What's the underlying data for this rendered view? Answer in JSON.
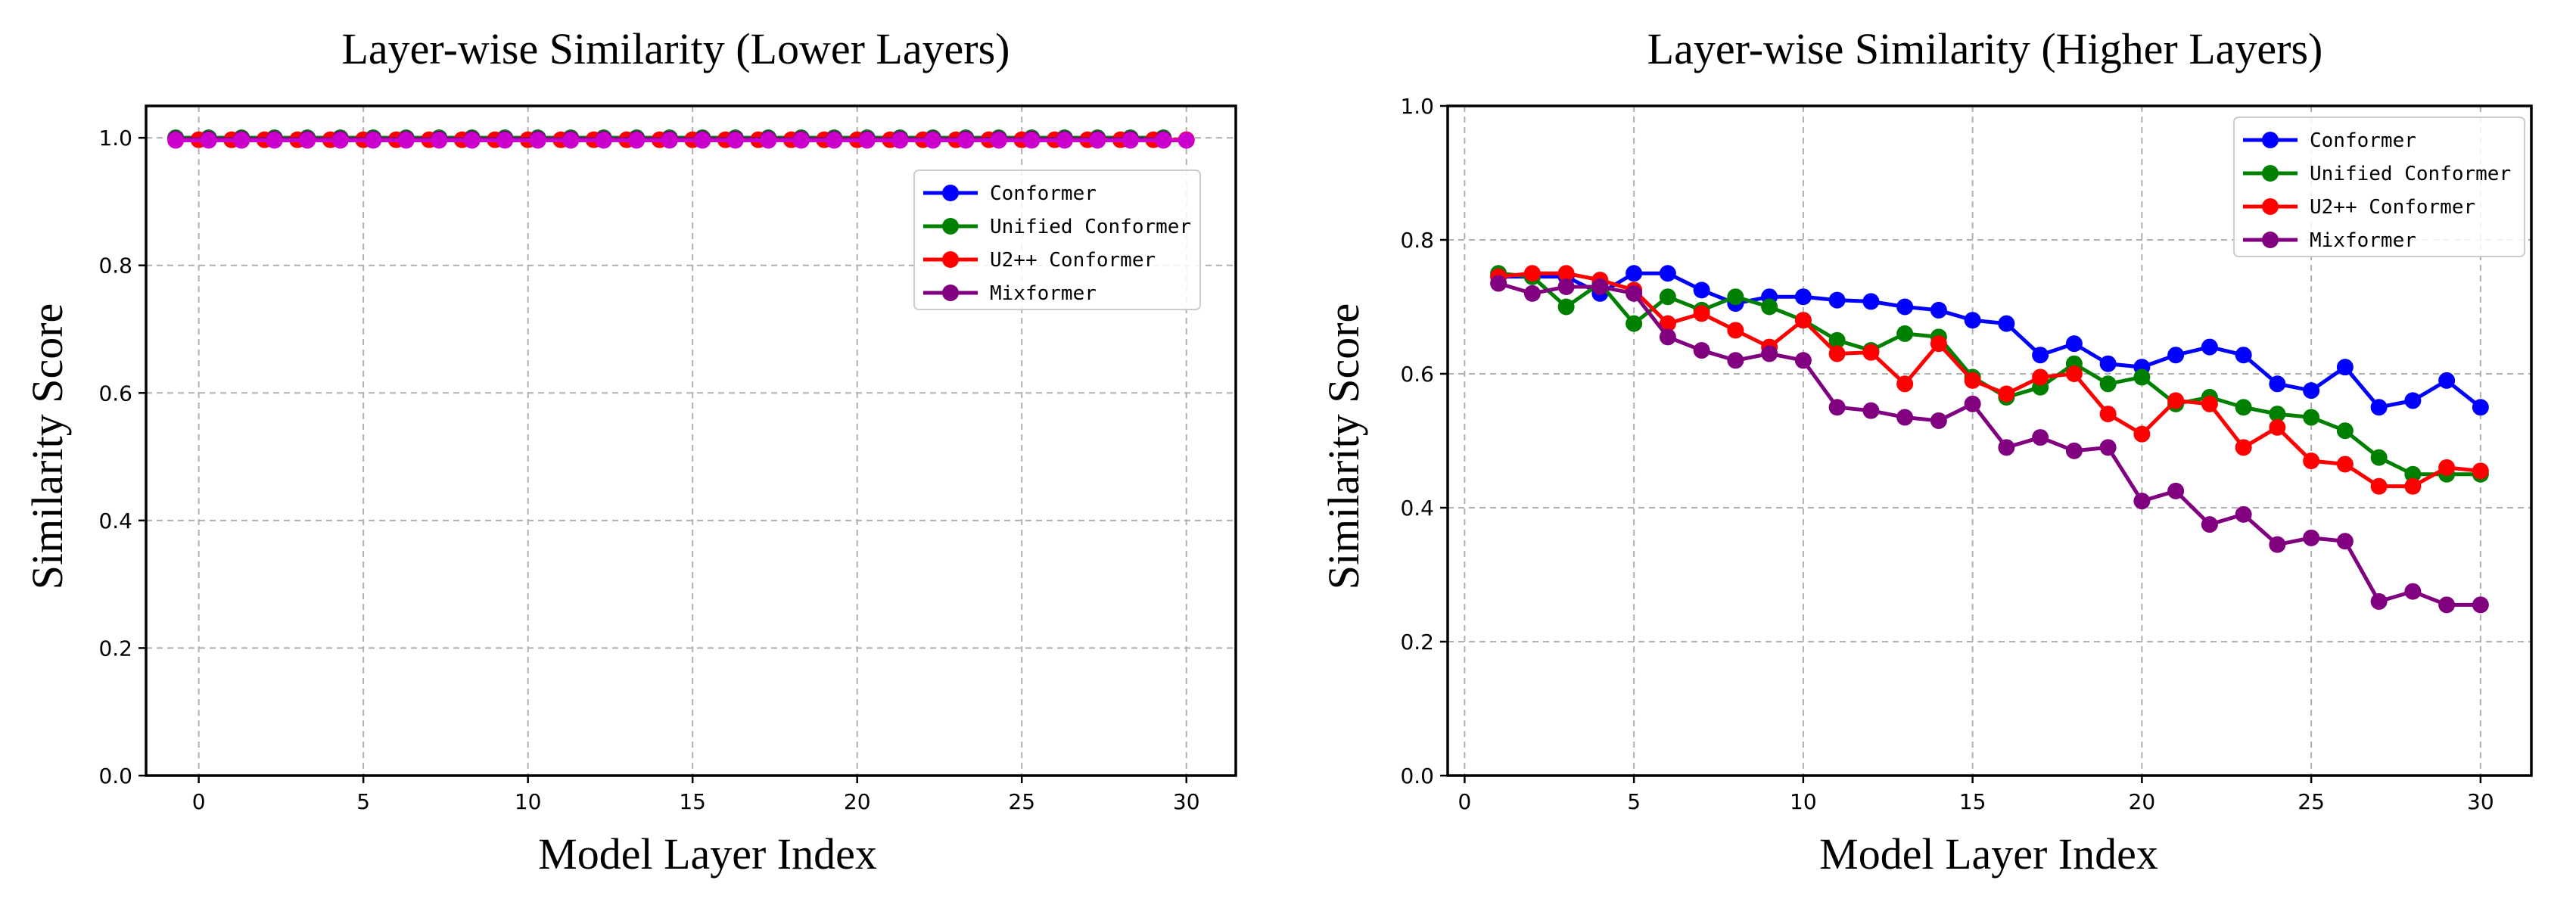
{
  "chart_data": [
    {
      "type": "line",
      "title": "Layer-wise Similarity (Lower Layers)",
      "xlabel": "Model Layer Index",
      "ylabel": "Similarity Score",
      "xlim": [
        -1.6,
        31.5
      ],
      "ylim": [
        0.0,
        1.05
      ],
      "xticks": [
        0,
        5,
        10,
        15,
        20,
        25,
        30
      ],
      "xtick_labels": [
        "0",
        "5",
        "10",
        "15",
        "20",
        "25",
        "30"
      ],
      "yticks": [
        0.0,
        0.2,
        0.4,
        0.6,
        0.8,
        1.0
      ],
      "ytick_labels": [
        "0.0",
        "0.2",
        "0.4",
        "0.6",
        "0.8",
        "1.0"
      ],
      "grid": true,
      "legend_position": "upper-right",
      "series": [
        {
          "name": "Conformer",
          "color": "#0000ff",
          "x": [
            -0.7,
            0.3,
            1.3,
            2.3,
            3.3,
            4.3,
            5.3,
            6.3,
            7.3,
            8.3,
            9.3,
            10.3,
            11.3,
            12.3,
            13.3,
            14.3,
            15.3,
            16.3,
            17.3,
            18.3,
            19.3,
            20.3,
            21.3,
            22.3,
            23.3,
            24.3,
            25.3,
            26.3,
            27.3,
            28.3,
            29.3
          ],
          "values": [
            1.0,
            1.0,
            1.0,
            1.0,
            1.0,
            1.0,
            1.0,
            1.0,
            1.0,
            1.0,
            1.0,
            1.0,
            1.0,
            1.0,
            1.0,
            1.0,
            1.0,
            1.0,
            1.0,
            1.0,
            1.0,
            1.0,
            1.0,
            1.0,
            1.0,
            1.0,
            1.0,
            1.0,
            1.0,
            1.0,
            1.0
          ]
        },
        {
          "name": "Unified Conformer",
          "color": "#008000",
          "x": [
            -0.7,
            0.3,
            1.3,
            2.3,
            3.3,
            4.3,
            5.3,
            6.3,
            7.3,
            8.3,
            9.3,
            10.3,
            11.3,
            12.3,
            13.3,
            14.3,
            15.3,
            16.3,
            17.3,
            18.3,
            19.3,
            20.3,
            21.3,
            22.3,
            23.3,
            24.3,
            25.3,
            26.3,
            27.3,
            28.3,
            29.3
          ],
          "values": [
            1.0,
            1.0,
            1.0,
            1.0,
            1.0,
            1.0,
            1.0,
            1.0,
            1.0,
            1.0,
            1.0,
            1.0,
            1.0,
            1.0,
            1.0,
            1.0,
            1.0,
            1.0,
            1.0,
            1.0,
            1.0,
            1.0,
            1.0,
            1.0,
            1.0,
            1.0,
            1.0,
            1.0,
            1.0,
            1.0,
            1.0
          ]
        },
        {
          "name": "U2++ Conformer",
          "color": "#ff0000",
          "x": [
            0,
            1,
            2,
            3,
            4,
            5,
            6,
            7,
            8,
            9,
            10,
            11,
            12,
            13,
            14,
            15,
            16,
            17,
            18,
            19,
            20,
            21,
            22,
            23,
            24,
            25,
            26,
            27,
            28,
            29,
            30
          ],
          "values": [
            0.997,
            0.997,
            0.997,
            0.997,
            0.997,
            0.997,
            0.997,
            0.997,
            0.997,
            0.997,
            0.997,
            0.997,
            0.997,
            0.997,
            0.997,
            0.997,
            0.997,
            0.997,
            0.997,
            0.997,
            0.997,
            0.997,
            0.997,
            0.997,
            0.997,
            0.997,
            0.997,
            0.997,
            0.997,
            0.997,
            0.997
          ]
        },
        {
          "name": "Mixformer",
          "color": "#800080",
          "x": [
            -0.7,
            0.3,
            1.3,
            2.3,
            3.3,
            4.3,
            5.3,
            6.3,
            7.3,
            8.3,
            9.3,
            10.3,
            11.3,
            12.3,
            13.3,
            14.3,
            15.3,
            16.3,
            17.3,
            18.3,
            19.3,
            20.3,
            21.3,
            22.3,
            23.3,
            24.3,
            25.3,
            26.3,
            27.3,
            28.3,
            29.3
          ],
          "values": [
            0.998,
            0.998,
            0.998,
            0.998,
            0.998,
            0.998,
            0.998,
            0.998,
            0.998,
            0.998,
            0.998,
            0.998,
            0.998,
            0.998,
            0.998,
            0.998,
            0.998,
            0.998,
            0.998,
            0.998,
            0.998,
            0.998,
            0.998,
            0.998,
            0.998,
            0.998,
            0.998,
            0.998,
            0.998,
            0.998,
            0.998
          ]
        },
        {
          "name": "",
          "color": "#cc00cc",
          "x": [
            -0.7,
            0.3,
            1.3,
            2.3,
            3.3,
            4.3,
            5.3,
            6.3,
            7.3,
            8.3,
            9.3,
            10.3,
            11.3,
            12.3,
            13.3,
            14.3,
            15.3,
            16.3,
            17.3,
            18.3,
            19.3,
            20.3,
            21.3,
            22.3,
            23.3,
            24.3,
            25.3,
            26.3,
            27.3,
            28.3,
            29.3,
            30.0
          ],
          "values": [
            0.996,
            0.996,
            0.996,
            0.996,
            0.996,
            0.996,
            0.996,
            0.996,
            0.996,
            0.996,
            0.996,
            0.996,
            0.996,
            0.996,
            0.996,
            0.996,
            0.996,
            0.996,
            0.996,
            0.996,
            0.996,
            0.996,
            0.996,
            0.996,
            0.996,
            0.996,
            0.996,
            0.996,
            0.996,
            0.996,
            0.996,
            0.996
          ],
          "in_legend": false
        }
      ],
      "legend": [
        "Conformer",
        "Unified Conformer",
        "U2++ Conformer",
        "Mixformer"
      ]
    },
    {
      "type": "line",
      "title": "Layer-wise Similarity (Higher Layers)",
      "xlabel": "Model Layer Index",
      "ylabel": "Similarity Score",
      "xlim": [
        -0.5,
        31.5
      ],
      "ylim": [
        0.0,
        1.0
      ],
      "xticks": [
        0,
        5,
        10,
        15,
        20,
        25,
        30
      ],
      "xtick_labels": [
        "0",
        "5",
        "10",
        "15",
        "20",
        "25",
        "30"
      ],
      "yticks": [
        0.0,
        0.2,
        0.4,
        0.6,
        0.8,
        1.0
      ],
      "ytick_labels": [
        "0.0",
        "0.2",
        "0.4",
        "0.6",
        "0.8",
        "1.0"
      ],
      "grid": true,
      "legend_position": "upper-right",
      "series": [
        {
          "name": "Conformer",
          "color": "#0000ff",
          "x": [
            1,
            2,
            3,
            4,
            5,
            6,
            7,
            8,
            9,
            10,
            11,
            12,
            13,
            14,
            15,
            16,
            17,
            18,
            19,
            20,
            21,
            22,
            23,
            24,
            25,
            26,
            27,
            28,
            29,
            30
          ],
          "values": [
            0.745,
            0.745,
            0.745,
            0.72,
            0.75,
            0.75,
            0.725,
            0.705,
            0.715,
            0.715,
            0.71,
            0.708,
            0.7,
            0.695,
            0.68,
            0.675,
            0.628,
            0.645,
            0.615,
            0.61,
            0.628,
            0.64,
            0.628,
            0.585,
            0.575,
            0.61,
            0.55,
            0.56,
            0.59,
            0.55
          ]
        },
        {
          "name": "Unified Conformer",
          "color": "#008000",
          "x": [
            1,
            2,
            3,
            4,
            5,
            6,
            7,
            8,
            9,
            10,
            11,
            12,
            13,
            14,
            15,
            16,
            17,
            18,
            19,
            20,
            21,
            22,
            23,
            24,
            25,
            26,
            27,
            28,
            29,
            30
          ],
          "values": [
            0.75,
            0.745,
            0.7,
            0.735,
            0.675,
            0.715,
            0.695,
            0.715,
            0.7,
            0.68,
            0.65,
            0.635,
            0.66,
            0.655,
            0.595,
            0.565,
            0.58,
            0.615,
            0.585,
            0.595,
            0.555,
            0.565,
            0.55,
            0.54,
            0.535,
            0.515,
            0.475,
            0.45,
            0.45,
            0.45
          ]
        },
        {
          "name": "U2++ Conformer",
          "color": "#ff0000",
          "x": [
            1,
            2,
            3,
            4,
            5,
            6,
            7,
            8,
            9,
            10,
            11,
            12,
            13,
            14,
            15,
            16,
            17,
            18,
            19,
            20,
            21,
            22,
            23,
            24,
            25,
            26,
            27,
            28,
            29,
            30
          ],
          "values": [
            0.745,
            0.75,
            0.75,
            0.74,
            0.725,
            0.675,
            0.69,
            0.665,
            0.64,
            0.68,
            0.63,
            0.632,
            0.585,
            0.645,
            0.59,
            0.57,
            0.595,
            0.6,
            0.54,
            0.51,
            0.56,
            0.555,
            0.49,
            0.52,
            0.47,
            0.465,
            0.432,
            0.432,
            0.46,
            0.455
          ]
        },
        {
          "name": "Mixformer",
          "color": "#800080",
          "x": [
            1,
            2,
            3,
            4,
            5,
            6,
            7,
            8,
            9,
            10,
            11,
            12,
            13,
            14,
            15,
            16,
            17,
            18,
            19,
            20,
            21,
            22,
            23,
            24,
            25,
            26,
            27,
            28,
            29,
            30
          ],
          "values": [
            0.735,
            0.72,
            0.73,
            0.73,
            0.72,
            0.655,
            0.635,
            0.62,
            0.63,
            0.62,
            0.55,
            0.545,
            0.535,
            0.53,
            0.555,
            0.49,
            0.505,
            0.485,
            0.49,
            0.41,
            0.425,
            0.375,
            0.39,
            0.345,
            0.355,
            0.35,
            0.26,
            0.275,
            0.255,
            0.255
          ]
        }
      ],
      "legend": [
        "Conformer",
        "Unified Conformer",
        "U2++ Conformer",
        "Mixformer"
      ]
    }
  ]
}
